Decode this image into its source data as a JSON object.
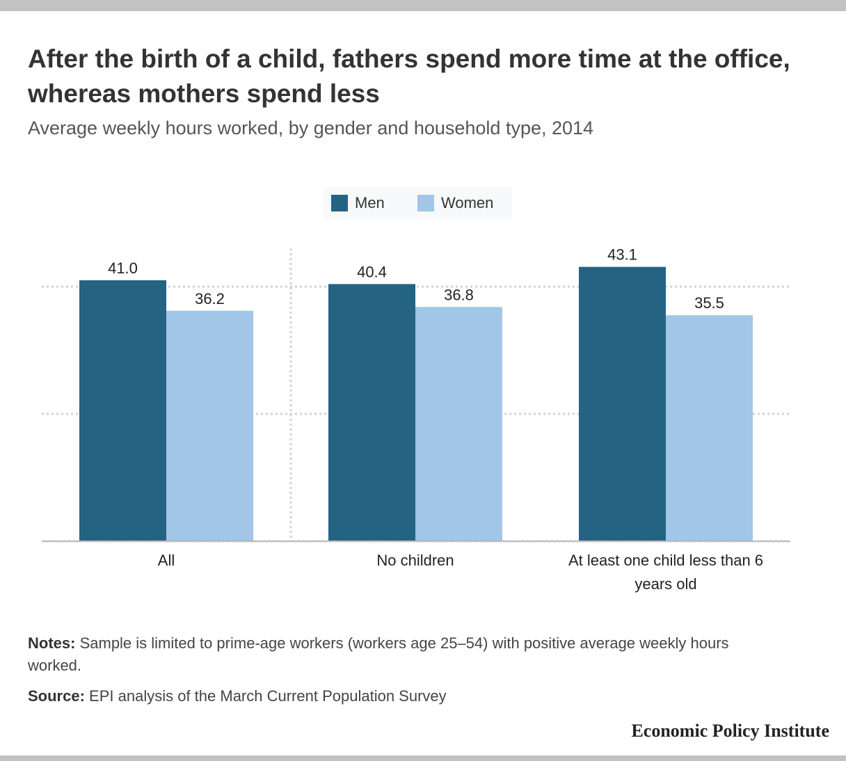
{
  "title": "After the birth of a child, fathers spend more time at the office, whereas mothers spend less",
  "subtitle": "Average weekly hours worked, by gender and household type, 2014",
  "notes": {
    "label": "Notes:",
    "text": "Sample is limited to prime-age workers (workers age 25–54) with positive average weekly hours worked."
  },
  "source": {
    "label": "Source:",
    "text": "EPI analysis of the March Current Population Survey"
  },
  "brand": "Economic Policy Institute",
  "colors": {
    "men": "#256383",
    "women": "#a1c6e7",
    "grid": "#d2d2d2",
    "axis": "#b4b4b4"
  },
  "chart_data": {
    "type": "bar",
    "categories": [
      "All",
      "No children",
      "At least one child less than 6 years old"
    ],
    "series": [
      {
        "name": "Men",
        "values": [
          41.0,
          40.4,
          43.1
        ]
      },
      {
        "name": "Women",
        "values": [
          36.2,
          36.8,
          35.5
        ]
      }
    ],
    "ylim": [
      0,
      45
    ],
    "gridlines": [
      20,
      40
    ],
    "grid": true,
    "legend": "top-center",
    "data_labels": true
  }
}
